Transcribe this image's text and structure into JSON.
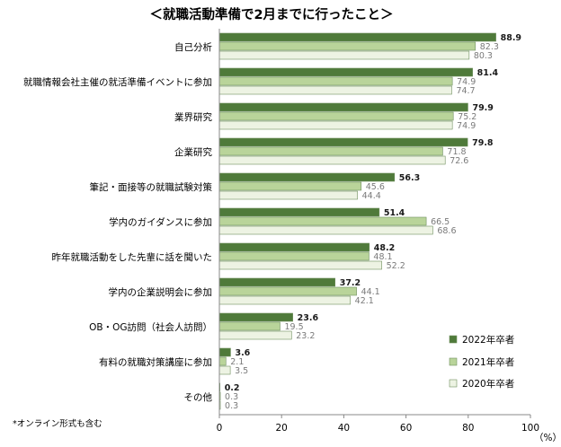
{
  "chart_data": {
    "type": "bar",
    "orientation": "horizontal",
    "title": "＜就職活動準備で2月までに行ったこと＞",
    "categories": [
      "自己分析",
      "就職情報会社主催の就活準備イベントに参加",
      "業界研究",
      "企業研究",
      "筆記・面接等の就職試験対策",
      "学内のガイダンスに参加",
      "昨年就職活動をした先輩に話を聞いた",
      "学内の企業説明会に参加",
      "OB・OG訪問（社会人訪問）",
      "有料の就職対策講座に参加",
      "その他"
    ],
    "series": [
      {
        "name": "2022年卒者",
        "color": "#4f7a3a",
        "values": [
          88.9,
          81.4,
          79.9,
          79.8,
          56.3,
          51.4,
          48.2,
          37.2,
          23.6,
          3.6,
          0.2
        ]
      },
      {
        "name": "2021年卒者",
        "color": "#b9d49a",
        "values": [
          82.3,
          74.9,
          75.2,
          71.8,
          45.6,
          66.5,
          48.1,
          44.1,
          19.5,
          2.1,
          0.3
        ]
      },
      {
        "name": "2020年卒者",
        "color": "#edf3e3",
        "values": [
          80.3,
          74.7,
          74.9,
          72.6,
          44.4,
          68.6,
          52.2,
          42.1,
          23.2,
          3.5,
          0.3
        ]
      }
    ],
    "xlim": [
      0,
      100
    ],
    "xticks": [
      0,
      20,
      40,
      60,
      80,
      100
    ],
    "xunit": "（%）",
    "legend_position": "bottom-right",
    "grid": false,
    "note": "*オンライン形式も含む"
  }
}
